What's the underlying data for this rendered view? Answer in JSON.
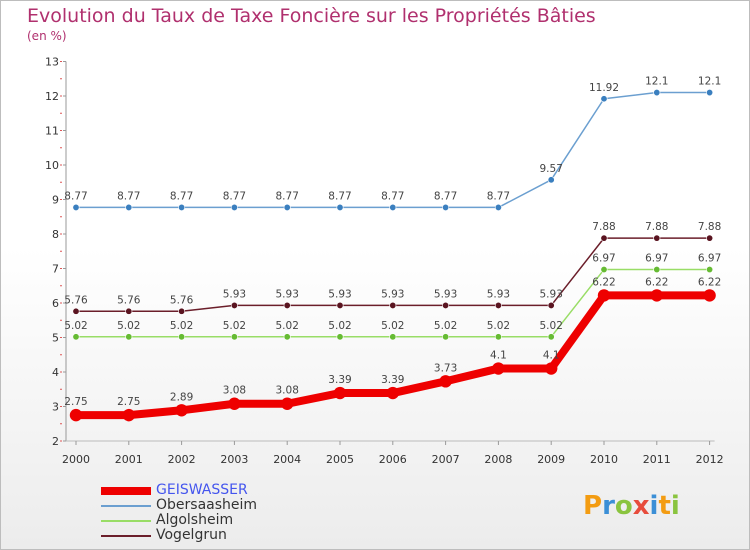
{
  "title": "Evolution du Taux de Taxe Foncière sur les Propriétés Bâties",
  "unit": "(en %)",
  "logo": "Proxiti",
  "chart_data": {
    "type": "line",
    "title": "Evolution du Taux de Taxe Foncière sur les Propriétés Bâties",
    "ylabel": "(en %)",
    "ylim": [
      2,
      13
    ],
    "yticks": [
      2,
      3,
      4,
      5,
      6,
      7,
      8,
      9,
      10,
      11,
      12,
      13
    ],
    "categories": [
      "2000",
      "2001",
      "2002",
      "2003",
      "2004",
      "2005",
      "2006",
      "2007",
      "2008",
      "2009",
      "2010",
      "2011",
      "2012"
    ],
    "series": [
      {
        "name": "Obersaasheim",
        "color": "#6b9fd0",
        "marker": "#3a7fbf",
        "values": [
          8.77,
          8.77,
          8.77,
          8.77,
          8.77,
          8.77,
          8.77,
          8.77,
          8.77,
          9.57,
          11.92,
          12.1,
          12.1
        ],
        "labels": [
          "8.77",
          "8.77",
          "8.77",
          "8.77",
          "8.77",
          "8.77",
          "8.77",
          "8.77",
          "8.77",
          "9.57",
          "11.92",
          "12.1",
          "12.1"
        ]
      },
      {
        "name": "Vogelgrun",
        "color": "#6b1e2a",
        "marker": "#5a1420",
        "values": [
          5.76,
          5.76,
          5.76,
          5.93,
          5.93,
          5.93,
          5.93,
          5.93,
          5.93,
          5.93,
          7.88,
          7.88,
          7.88
        ],
        "labels": [
          "5.76",
          "5.76",
          "5.76",
          "5.93",
          "5.93",
          "5.93",
          "5.93",
          "5.93",
          "5.93",
          "5.93",
          "7.88",
          "7.88",
          "7.88"
        ]
      },
      {
        "name": "Algolsheim",
        "color": "#99dd66",
        "marker": "#66bb33",
        "values": [
          5.02,
          5.02,
          5.02,
          5.02,
          5.02,
          5.02,
          5.02,
          5.02,
          5.02,
          5.02,
          6.97,
          6.97,
          6.97
        ],
        "labels": [
          "5.02",
          "5.02",
          "5.02",
          "5.02",
          "5.02",
          "5.02",
          "5.02",
          "5.02",
          "5.02",
          "5.02",
          "6.97",
          "6.97",
          "6.97"
        ]
      },
      {
        "name": "GEISWASSER",
        "color": "#ee0000",
        "marker": "#ee0000",
        "values": [
          2.75,
          2.75,
          2.89,
          3.08,
          3.08,
          3.39,
          3.39,
          3.73,
          4.1,
          4.1,
          6.22,
          6.22,
          6.22
        ],
        "labels": [
          "2.75",
          "2.75",
          "2.89",
          "3.08",
          "3.08",
          "3.39",
          "3.39",
          "3.73",
          "4.1",
          "4.1",
          "6.22",
          "6.22",
          "6.22"
        ]
      }
    ],
    "legend": [
      {
        "name": "GEISWASSER",
        "color": "#ee0000",
        "text_color": "#4455ee"
      },
      {
        "name": "Obersaasheim",
        "color": "#6b9fd0",
        "text_color": "#333333"
      },
      {
        "name": "Algolsheim",
        "color": "#99dd66",
        "text_color": "#333333"
      },
      {
        "name": "Vogelgrun",
        "color": "#6b1e2a",
        "text_color": "#333333"
      }
    ]
  }
}
